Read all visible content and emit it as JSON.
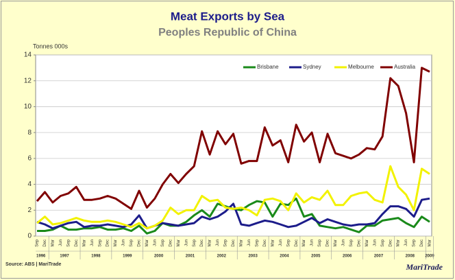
{
  "chart_data": {
    "type": "line",
    "title": "Meat Exports by Sea",
    "subtitle": "Peoples Republic of China",
    "y_label": "Tonnes 000s",
    "source": "Source: ABS | MariTrade",
    "brand": "MariTrade",
    "categories": [
      "Sep",
      "Dec",
      "Mar",
      "Jun",
      "Sep",
      "Dec",
      "Mar",
      "Jun",
      "Sep",
      "Dec",
      "Mar",
      "Jun",
      "Sep",
      "Dec",
      "Mar",
      "Jun",
      "Sep",
      "Dec",
      "Mar",
      "Jun",
      "Sep",
      "Dec",
      "Mar",
      "Jun",
      "Sep",
      "Dec",
      "Mar",
      "Jun",
      "Sep",
      "Dec",
      "Mar",
      "Jun",
      "Sep",
      "Dec",
      "Mar",
      "Jun",
      "Sep",
      "Dec",
      "Mar",
      "Jun",
      "Sep",
      "Dec",
      "Mar",
      "Jun",
      "Sep",
      "Dec",
      "Mar",
      "Jun",
      "Sep",
      "Dec",
      "Mar"
    ],
    "years": [
      "1996",
      "1997",
      "1998",
      "1999",
      "2000",
      "2001",
      "2002",
      "2003",
      "2004",
      "2005",
      "2006",
      "2007",
      "2008",
      "2009"
    ],
    "series": [
      {
        "name": "Brisbane",
        "color": "#1a8a1a",
        "values": [
          0.4,
          0.4,
          0.5,
          0.8,
          0.5,
          0.5,
          0.6,
          0.6,
          0.7,
          0.5,
          0.5,
          0.6,
          0.4,
          0.8,
          0.2,
          0.4,
          1.0,
          0.8,
          0.8,
          1.1,
          1.6,
          2.0,
          1.5,
          2.5,
          2.3,
          2.1,
          2.0,
          2.4,
          2.7,
          2.6,
          1.5,
          2.5,
          2.4,
          2.9,
          1.5,
          1.7,
          0.8,
          0.7,
          0.6,
          0.7,
          0.5,
          0.3,
          0.8,
          0.8,
          1.2,
          1.3,
          1.4,
          1.0,
          0.7,
          1.5,
          1.1
        ]
      },
      {
        "name": "Sydney",
        "color": "#1c1c8a",
        "values": [
          1.1,
          0.9,
          0.6,
          0.8,
          1.0,
          1.1,
          0.7,
          0.8,
          0.8,
          0.9,
          0.8,
          0.7,
          0.9,
          1.6,
          0.6,
          0.8,
          1.0,
          0.9,
          0.8,
          0.9,
          1.0,
          1.5,
          1.3,
          1.5,
          1.9,
          2.5,
          0.9,
          0.8,
          1.0,
          1.2,
          1.1,
          0.9,
          0.7,
          0.8,
          1.1,
          1.4,
          1.0,
          1.3,
          1.1,
          0.9,
          0.8,
          0.9,
          0.9,
          1.0,
          1.7,
          2.3,
          2.3,
          2.1,
          1.5,
          2.8,
          2.9
        ]
      },
      {
        "name": "Melbourne",
        "color": "#f2f200",
        "values": [
          1.0,
          1.5,
          0.9,
          1.0,
          1.2,
          1.4,
          1.2,
          1.1,
          1.1,
          1.2,
          1.1,
          0.9,
          0.7,
          1.0,
          0.6,
          0.8,
          1.2,
          2.2,
          1.7,
          2.0,
          2.0,
          3.1,
          2.7,
          2.8,
          2.2,
          2.1,
          2.2,
          2.0,
          1.6,
          2.8,
          2.9,
          2.7,
          2.0,
          3.3,
          2.6,
          3.0,
          2.8,
          3.5,
          2.4,
          2.4,
          3.1,
          3.3,
          3.4,
          2.8,
          2.6,
          5.4,
          3.8,
          3.2,
          2.0,
          5.2,
          4.8
        ]
      },
      {
        "name": "Australia",
        "color": "#800000",
        "values": [
          2.7,
          3.4,
          2.6,
          3.1,
          3.3,
          3.8,
          2.8,
          2.8,
          2.9,
          3.1,
          2.9,
          2.5,
          2.1,
          3.5,
          2.2,
          2.9,
          4.0,
          4.8,
          4.1,
          4.8,
          5.4,
          8.1,
          6.3,
          8.1,
          7.1,
          7.9,
          5.6,
          5.8,
          5.8,
          8.4,
          7.0,
          7.4,
          5.7,
          8.6,
          7.3,
          8.0,
          5.7,
          7.9,
          6.4,
          6.2,
          6.0,
          6.3,
          6.8,
          6.7,
          7.7,
          12.2,
          11.6,
          9.5,
          5.7,
          13.0,
          12.7
        ]
      }
    ],
    "ylim": [
      0,
      14
    ],
    "yticks": [
      0,
      2,
      4,
      6,
      8,
      10,
      12,
      14
    ],
    "grid": true,
    "legend": "top-right"
  }
}
